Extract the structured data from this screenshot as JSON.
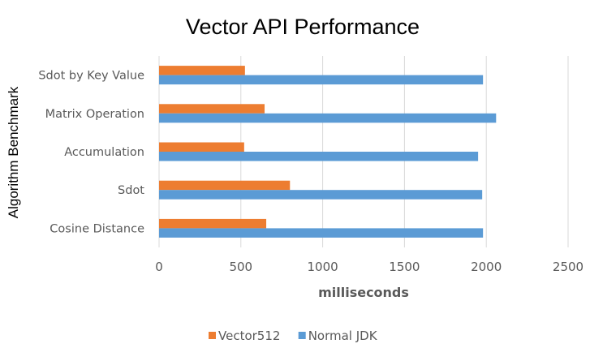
{
  "chart_data": {
    "type": "bar",
    "orientation": "horizontal",
    "title": "Vector API Performance",
    "xlabel": "milliseconds",
    "ylabel": "Algorithm Benchmark",
    "categories": [
      "Sdot by Key Value",
      "Matrix Operation",
      "Accumulation",
      "Sdot",
      "Cosine Distance"
    ],
    "series": [
      {
        "name": "Vector512",
        "color": "#ed7d31",
        "values": [
          525,
          645,
          520,
          800,
          655
        ]
      },
      {
        "name": "Normal JDK",
        "color": "#5b9bd5",
        "values": [
          1980,
          2060,
          1950,
          1975,
          1980
        ]
      }
    ],
    "xlim": [
      0,
      2500
    ],
    "xticks": [
      "0",
      "500",
      "1000",
      "1500",
      "2000",
      "2500"
    ],
    "grid": true,
    "legend_position": "bottom"
  }
}
